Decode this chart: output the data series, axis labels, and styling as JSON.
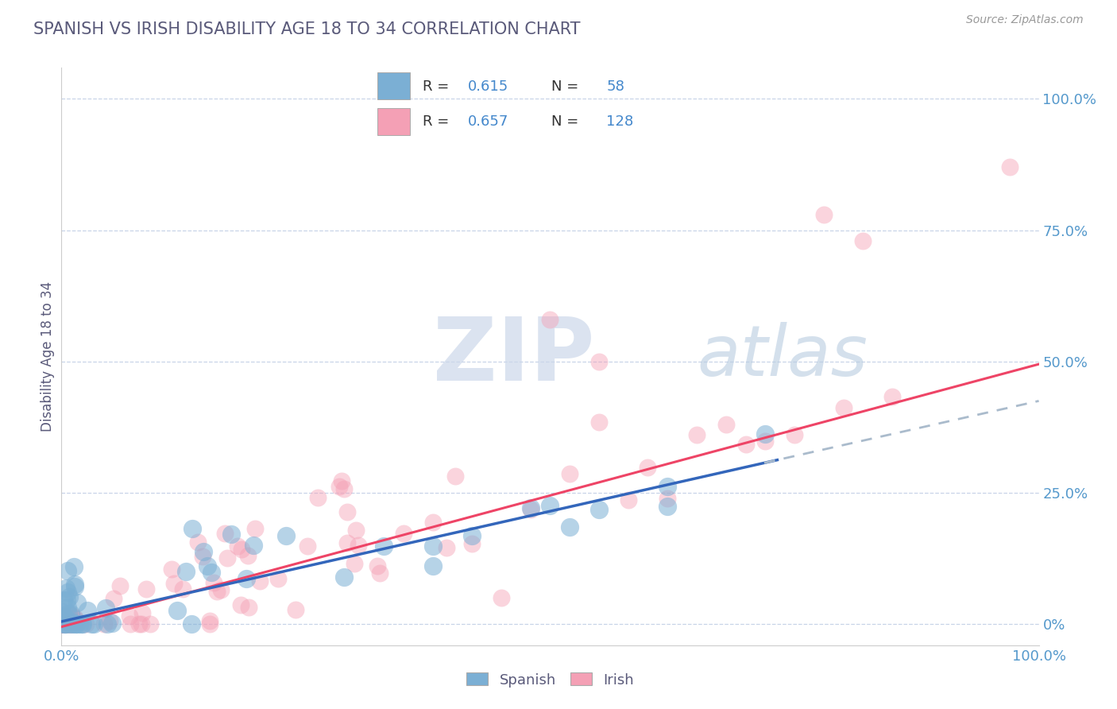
{
  "title": "SPANISH VS IRISH DISABILITY AGE 18 TO 34 CORRELATION CHART",
  "source_text": "Source: ZipAtlas.com",
  "ylabel": "Disability Age 18 to 34",
  "spanish_color": "#7bafd4",
  "irish_color": "#f4a0b5",
  "spanish_R": 0.615,
  "spanish_N": 58,
  "irish_R": 0.657,
  "irish_N": 128,
  "watermark": "ZIPatlas",
  "watermark_color_zip": "#c8d4e8",
  "watermark_color_atlas": "#b8cce0",
  "background_color": "#ffffff",
  "grid_color": "#c8d4e8",
  "title_color": "#5a5a7a",
  "axis_label_color": "#5a5a7a",
  "tick_label_color_blue": "#5599cc",
  "legend_R_color": "#4488cc",
  "spanish_trend_color": "#3366bb",
  "irish_trend_color": "#ee4466",
  "dash_color": "#aabbcc",
  "seed": 77,
  "sp_slope": 0.42,
  "sp_intercept": 0.005,
  "ir_slope": 0.5,
  "ir_intercept": -0.005
}
